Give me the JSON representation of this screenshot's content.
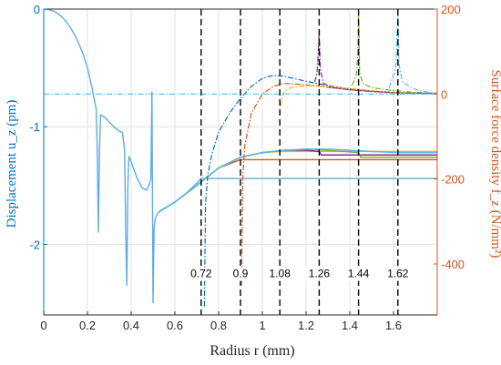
{
  "chart_data": {
    "type": "line",
    "title": "",
    "xlabel": "Radius r (mm)",
    "xlim": [
      0,
      1.8
    ],
    "xticks": [
      "0",
      "0.2",
      "0.4",
      "0.6",
      "0.8",
      "1",
      "1.2",
      "1.4",
      "1.6"
    ],
    "xtick_values": [
      0,
      0.2,
      0.4,
      0.6,
      0.8,
      1.0,
      1.2,
      1.4,
      1.6
    ],
    "y_left": {
      "label": "Displacement u_z (pm)",
      "ylim": [
        -2.6,
        0
      ],
      "ticks": [
        "0",
        "-1",
        "-2"
      ],
      "tick_values": [
        0,
        -1,
        -2
      ],
      "color": "#0072BD"
    },
    "y_right": {
      "label": "Surface force density f_z (N/mm²)",
      "ylim": [
        -520,
        200
      ],
      "ticks": [
        "200",
        "0",
        "-200",
        "-400"
      ],
      "tick_values": [
        200,
        0,
        -200,
        -400
      ],
      "color": "#D95319"
    },
    "grid": true,
    "truncation_radii": {
      "values": [
        0.72,
        0.9,
        1.08,
        1.26,
        1.44,
        1.62
      ],
      "labels": [
        "0.72",
        "0.9",
        "1.08",
        "1.26",
        "1.44",
        "1.62"
      ],
      "label_y": -2.28
    },
    "displacement_series": [
      {
        "color": "#5DADE2",
        "x": [
          0,
          0.02,
          0.05,
          0.08,
          0.1,
          0.12,
          0.15,
          0.18,
          0.2,
          0.22,
          0.24,
          0.245,
          0.25,
          0.255,
          0.26,
          0.28,
          0.3,
          0.32,
          0.34,
          0.36,
          0.37,
          0.375,
          0.38,
          0.385,
          0.39,
          0.41,
          0.43,
          0.45,
          0.47,
          0.48,
          0.49,
          0.495,
          0.5,
          0.505,
          0.51,
          0.52,
          0.53,
          0.55,
          0.6,
          0.65,
          0.7,
          0.72,
          0.73,
          0.8,
          1.8
        ],
        "y": [
          0,
          -0.003,
          -0.02,
          -0.06,
          -0.1,
          -0.15,
          -0.25,
          -0.38,
          -0.5,
          -0.66,
          -0.85,
          -1.2,
          -1.9,
          -1.2,
          -0.9,
          -0.92,
          -0.96,
          -1.0,
          -1.03,
          -1.05,
          -1.2,
          -1.9,
          -2.35,
          -1.5,
          -1.25,
          -1.35,
          -1.45,
          -1.52,
          -1.54,
          -1.5,
          -1.45,
          -0.7,
          -2.5,
          -1.85,
          -1.78,
          -1.74,
          -1.72,
          -1.7,
          -1.64,
          -1.57,
          -1.48,
          -1.44,
          -1.44,
          -1.44,
          -1.44
        ]
      },
      {
        "color": "#D95319",
        "x": [
          0.53,
          0.6,
          0.7,
          0.8,
          0.9,
          0.91,
          1.8
        ],
        "y": [
          -1.72,
          -1.64,
          -1.5,
          -1.35,
          -1.28,
          -1.28,
          -1.28
        ]
      },
      {
        "color": "#EDB120",
        "x": [
          0.53,
          0.6,
          0.7,
          0.8,
          0.9,
          1.0,
          1.08,
          1.09,
          1.8
        ],
        "y": [
          -1.72,
          -1.64,
          -1.5,
          -1.35,
          -1.26,
          -1.22,
          -1.21,
          -1.21,
          -1.21
        ]
      },
      {
        "color": "#7E2F8E",
        "x": [
          0.53,
          0.6,
          0.7,
          0.8,
          0.9,
          1.0,
          1.1,
          1.2,
          1.26,
          1.27,
          1.8
        ],
        "y": [
          -1.72,
          -1.64,
          -1.5,
          -1.35,
          -1.26,
          -1.22,
          -1.2,
          -1.2,
          -1.21,
          -1.24,
          -1.24
        ]
      },
      {
        "color": "#77AC30",
        "x": [
          0.53,
          0.6,
          0.7,
          0.8,
          0.9,
          1.0,
          1.1,
          1.2,
          1.3,
          1.44,
          1.45,
          1.8
        ],
        "y": [
          -1.72,
          -1.64,
          -1.5,
          -1.35,
          -1.26,
          -1.22,
          -1.2,
          -1.19,
          -1.2,
          -1.22,
          -1.26,
          -1.26
        ]
      },
      {
        "color": "#4DBEEE",
        "x": [
          0.53,
          0.6,
          0.7,
          0.8,
          0.9,
          1.0,
          1.1,
          1.2,
          1.3,
          1.4,
          1.5,
          1.62,
          1.63,
          1.8
        ],
        "y": [
          -1.72,
          -1.64,
          -1.5,
          -1.35,
          -1.26,
          -1.22,
          -1.2,
          -1.19,
          -1.19,
          -1.2,
          -1.21,
          -1.22,
          -1.22,
          -1.22
        ]
      }
    ],
    "force_series": [
      {
        "color": "#0072BD",
        "x": [
          0.735,
          0.74,
          0.75,
          0.77,
          0.8,
          0.85,
          0.9,
          0.95,
          1.0,
          1.05,
          1.1,
          1.2,
          1.3,
          1.4,
          1.5,
          1.6,
          1.7,
          1.8
        ],
        "y": [
          -500,
          -260,
          -190,
          -140,
          -90,
          -45,
          -10,
          18,
          37,
          44,
          42,
          30,
          20,
          12,
          7,
          4,
          2,
          1
        ]
      },
      {
        "color": "#D95319",
        "x": [
          0.905,
          0.91,
          0.92,
          0.95,
          1.0,
          1.05,
          1.1,
          1.2,
          1.3,
          1.4,
          1.5,
          1.6,
          1.7,
          1.8
        ],
        "y": [
          -450,
          -200,
          -120,
          -45,
          0,
          18,
          25,
          22,
          16,
          10,
          6,
          3,
          2,
          1
        ]
      },
      {
        "color": "#EDB120",
        "x": [
          1.083,
          1.09,
          1.1,
          1.13,
          1.2,
          1.3,
          1.4,
          1.5,
          1.6,
          1.7,
          1.8
        ],
        "y": [
          -30,
          -10,
          5,
          15,
          20,
          18,
          13,
          8,
          4,
          2,
          1
        ]
      },
      {
        "color": "#7E2F8E",
        "x": [
          1.24,
          1.25,
          1.255,
          1.26,
          1.265,
          1.28,
          1.32,
          1.4,
          1.5,
          1.6,
          1.7,
          1.8
        ],
        "y": [
          28,
          50,
          90,
          150,
          60,
          25,
          15,
          10,
          6,
          3,
          2,
          1
        ]
      },
      {
        "color": "#77AC30",
        "x": [
          1.41,
          1.43,
          1.437,
          1.44,
          1.445,
          1.46,
          1.5,
          1.6,
          1.7,
          1.8
        ],
        "y": [
          20,
          45,
          100,
          190,
          50,
          25,
          15,
          8,
          4,
          2
        ]
      },
      {
        "color": "#4DBEEE",
        "x": [
          1.58,
          1.61,
          1.615,
          1.62,
          1.625,
          1.64,
          1.68,
          1.72,
          1.76,
          1.8
        ],
        "y": [
          15,
          60,
          130,
          190,
          70,
          30,
          15,
          8,
          4,
          2
        ]
      }
    ]
  }
}
